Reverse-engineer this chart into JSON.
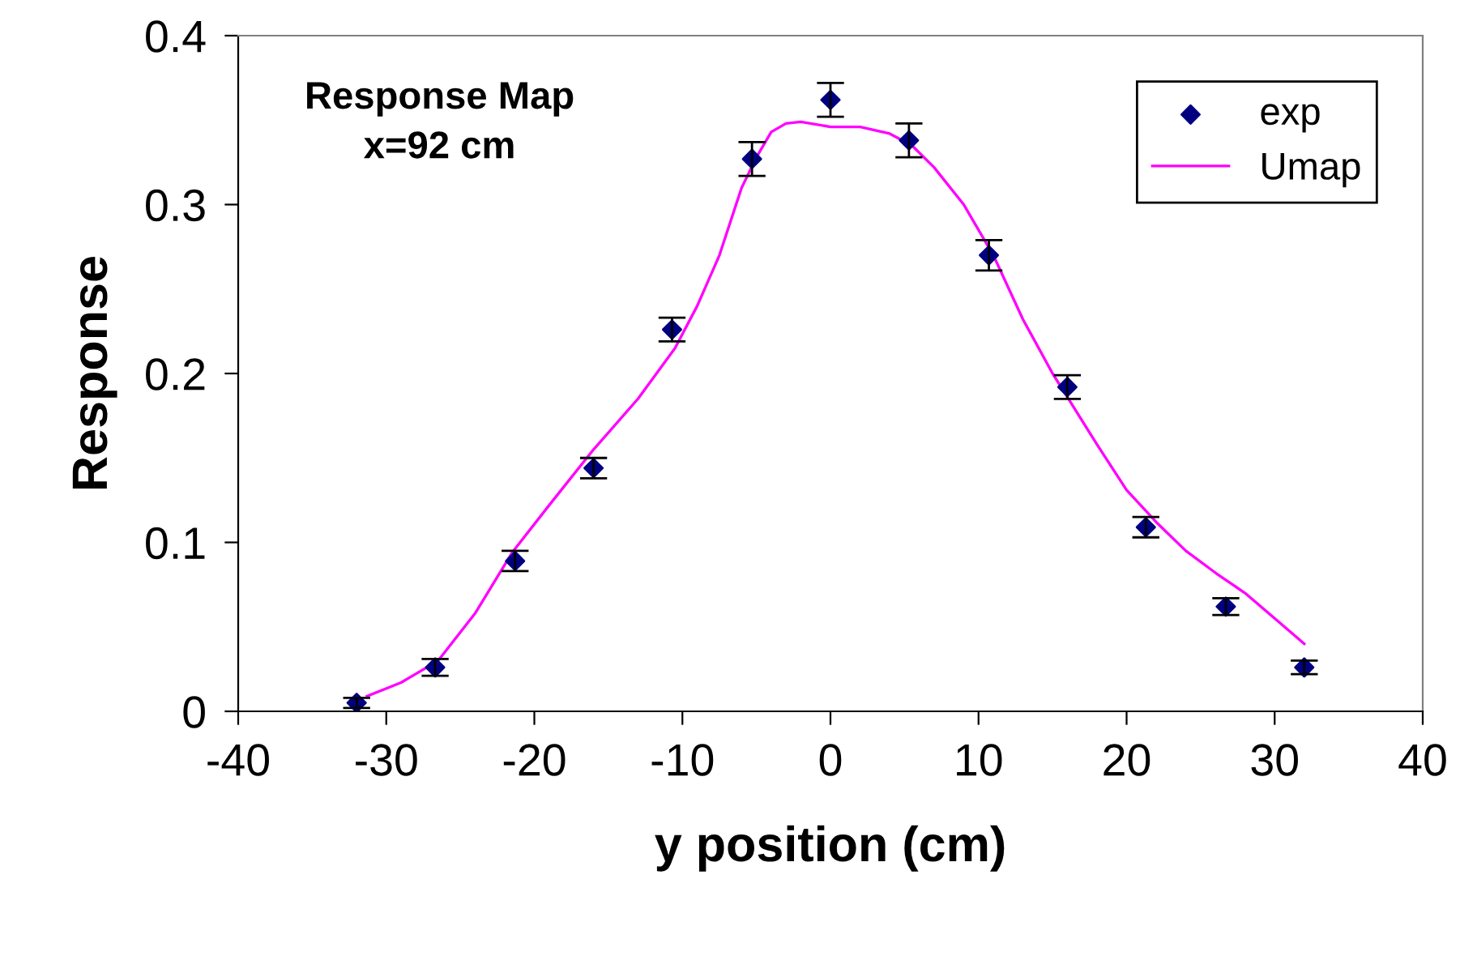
{
  "chart_data": {
    "type": "scatter",
    "xlabel": "y position (cm)",
    "ylabel": "Response",
    "annotations": [
      "Response Map\nx=92 cm"
    ],
    "xlim": [
      -40,
      40
    ],
    "xticks": [
      -40,
      -30,
      -20,
      -10,
      0,
      10,
      20,
      30,
      40
    ],
    "ylim": [
      0,
      0.4
    ],
    "yticks": [
      0,
      0.1,
      0.2,
      0.3,
      0.4
    ],
    "grid": false,
    "legend": "top right",
    "series": [
      {
        "name": "exp",
        "marker": "diamond",
        "color": "#000080",
        "x": [
          -32,
          -26.7,
          -21.3,
          -16,
          -10.7,
          -5.3,
          0,
          5.3,
          10.7,
          16,
          21.3,
          26.7,
          32
        ],
        "values": [
          0.005,
          0.026,
          0.089,
          0.144,
          0.226,
          0.327,
          0.362,
          0.338,
          0.27,
          0.192,
          0.109,
          0.062,
          0.026
        ],
        "errors": [
          0.003,
          0.005,
          0.006,
          0.006,
          0.007,
          0.01,
          0.01,
          0.01,
          0.009,
          0.007,
          0.006,
          0.005,
          0.004
        ]
      },
      {
        "name": "Umap",
        "type": "line",
        "marker": "none",
        "line_style": "solid",
        "color": "#ff00ff",
        "x": [
          -31.3,
          -29,
          -26.5,
          -24,
          -21.5,
          -19,
          -16,
          -13,
          -10.5,
          -9,
          -7.5,
          -6,
          -5,
          -4,
          -3,
          -2,
          0,
          2,
          4,
          5.5,
          7,
          9,
          11,
          13,
          15,
          16,
          18,
          20,
          22,
          24,
          26,
          28,
          30,
          32
        ],
        "values": [
          0.009,
          0.017,
          0.03,
          0.058,
          0.094,
          0.122,
          0.155,
          0.185,
          0.215,
          0.24,
          0.27,
          0.31,
          0.328,
          0.343,
          0.348,
          0.349,
          0.346,
          0.346,
          0.342,
          0.335,
          0.322,
          0.3,
          0.27,
          0.232,
          0.2,
          0.186,
          0.158,
          0.131,
          0.112,
          0.095,
          0.082,
          0.07,
          0.055,
          0.04
        ]
      }
    ]
  }
}
